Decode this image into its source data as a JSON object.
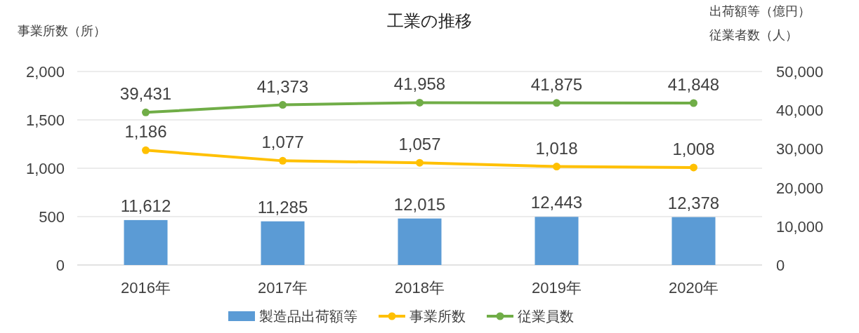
{
  "chart_data": {
    "type": "bar",
    "title": "工業の推移",
    "ylabel": "事業所数（所）",
    "y2label": "出荷額等（億円）",
    "annotations": [
      "従業者数（人）"
    ],
    "categories": [
      "2016年",
      "2017年",
      "2018年",
      "2019年",
      "2020年"
    ],
    "series": [
      {
        "name": "製造品出荷額等",
        "axis": "y2",
        "color": "#5b9bd5",
        "values": [
          11612,
          11285,
          12015,
          12443,
          12378
        ],
        "value_labels": [
          "11,612",
          "11,285",
          "12,015",
          "12,443",
          "12,378"
        ]
      },
      {
        "name": "事業所数",
        "type": "line",
        "color": "#ffc000",
        "marker": "circle",
        "values": [
          1186,
          1077,
          1057,
          1018,
          1008
        ],
        "value_labels": [
          "1,186",
          "1,077",
          "1,057",
          "1,018",
          "1,008"
        ]
      },
      {
        "name": "従業員数",
        "type": "line",
        "axis": "y2",
        "color": "#70ad47",
        "marker": "circle",
        "values": [
          39431,
          41373,
          41958,
          41875,
          41848
        ],
        "value_labels": [
          "39,431",
          "41,373",
          "41,958",
          "41,875",
          "41,848"
        ]
      }
    ],
    "ylim": [
      0,
      2000
    ],
    "yticks": [
      0,
      500,
      {
        "value": 1000,
        "label": "1,000"
      },
      {
        "value": 1500,
        "label": "1,500"
      },
      {
        "value": 2000,
        "label": "2,000"
      }
    ],
    "y2lim": [
      0,
      50000
    ],
    "y2ticks": [
      0,
      {
        "value": 10000,
        "label": "10,000"
      },
      {
        "value": 20000,
        "label": "20,000"
      },
      {
        "value": 30000,
        "label": "30,000"
      },
      {
        "value": 40000,
        "label": "40,000"
      },
      {
        "value": 50000,
        "label": "50,000"
      }
    ],
    "grid": "y",
    "legend": "bottom"
  }
}
